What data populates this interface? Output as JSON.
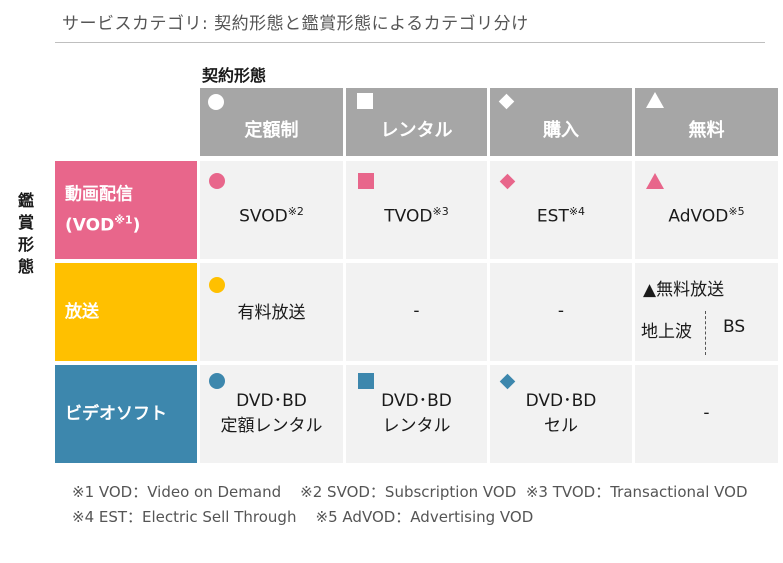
{
  "title": "サービスカテゴリ: 契約形態と鑑賞形態によるカテゴリ分け",
  "axis": {
    "contract_label": "契約形態",
    "viewing_chars": [
      "鑑",
      "賞",
      "形",
      "態"
    ]
  },
  "columns": [
    {
      "label": "定額制",
      "shape": "circle"
    },
    {
      "label": "レンタル",
      "shape": "square"
    },
    {
      "label": "購入",
      "shape": "diamond"
    },
    {
      "label": "無料",
      "shape": "triangle"
    }
  ],
  "rows": [
    {
      "line1": "動画配信",
      "line2": "(VOD",
      "line2_sup": "※1",
      "line2_end": ")",
      "color": "#e8668b"
    },
    {
      "line1": "放送",
      "color": "#ffc000"
    },
    {
      "line1": "ビデオソフト",
      "color": "#3d87ad"
    }
  ],
  "cells": {
    "vod": [
      {
        "label": "SVOD",
        "note": "※2"
      },
      {
        "label": "TVOD",
        "note": "※3"
      },
      {
        "label": "EST",
        "note": "※4"
      },
      {
        "label": "AdVOD",
        "note": "※5"
      }
    ],
    "broadcast": {
      "paid": "有料放送",
      "rental": "-",
      "purchase": "-",
      "free_title": "▲無料放送",
      "free_left": "地上波",
      "free_right": "BS"
    },
    "video": {
      "svod_l1": "DVD･BD",
      "svod_l2": "定額レンタル",
      "rental_l1": "DVD･BD",
      "rental_l2": "レンタル",
      "purchase_l1": "DVD･BD",
      "purchase_l2": "セル",
      "free": "-"
    }
  },
  "footnotes": {
    "n1": "※1 VOD：Video on Demand",
    "n2": "※2 SVOD：Subscription VOD",
    "n3": "※3 TVOD：Transactional VOD",
    "n4": "※4 EST：Electric Sell Through",
    "n5": "※5 AdVOD：Advertising VOD"
  },
  "colors": {
    "header_gray": "#a6a6a6",
    "cell_bg": "#f2f2f2",
    "vod_pink": "#e8668b",
    "broadcast_yellow": "#ffc000",
    "video_blue": "#3d87ad"
  }
}
